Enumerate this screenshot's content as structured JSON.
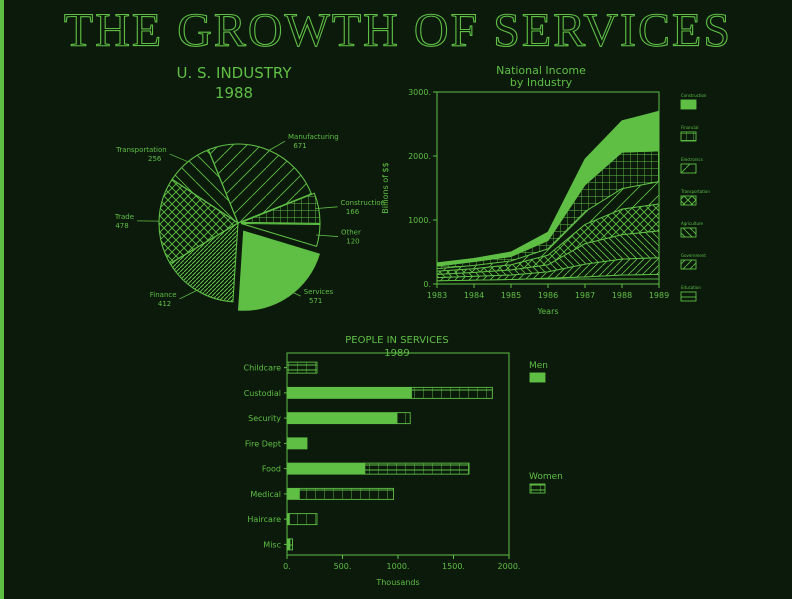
{
  "page": {
    "title": "THE GROWTH OF SERVICES",
    "fg": "#5fbf45",
    "bg": "#0b1a0b"
  },
  "chart_data": [
    {
      "type": "pie",
      "title": "U. S. INDUSTRY",
      "subtitle": "1988",
      "slices": [
        {
          "label": "Manufacturing",
          "value": 671
        },
        {
          "label": "Construction",
          "value": 166
        },
        {
          "label": "Other",
          "value": 120
        },
        {
          "label": "Services",
          "value": 571
        },
        {
          "label": "Finance",
          "value": 412
        },
        {
          "label": "Trade",
          "value": 478
        },
        {
          "label": "Transportation",
          "value": 256
        }
      ]
    },
    {
      "type": "area",
      "stacked": true,
      "title": "National Income",
      "subtitle": "by Industry",
      "xlabel": "Years",
      "ylabel": "Billions of $$",
      "x": [
        1983,
        1984,
        1985,
        1986,
        1987,
        1988,
        1989
      ],
      "xticks": [
        "1983",
        "1984",
        "1985",
        "1986",
        "1987",
        "1988",
        "1989"
      ],
      "yticks": [
        "0.",
        "1000.",
        "2000.",
        "3000."
      ],
      "ylim": [
        0,
        3000
      ],
      "legend_position": "right",
      "series": [
        {
          "name": "Education",
          "values": [
            50,
            60,
            70,
            90,
            110,
            140,
            150
          ]
        },
        {
          "name": "Government",
          "values": [
            50,
            60,
            70,
            100,
            200,
            250,
            260
          ]
        },
        {
          "name": "Agriculture",
          "values": [
            50,
            60,
            80,
            110,
            320,
            380,
            420
          ]
        },
        {
          "name": "Transportation",
          "values": [
            50,
            60,
            80,
            150,
            300,
            400,
            420
          ]
        },
        {
          "name": "Electronics",
          "values": [
            40,
            50,
            60,
            100,
            200,
            320,
            350
          ]
        },
        {
          "name": "Financial",
          "values": [
            40,
            60,
            70,
            130,
            420,
            570,
            480
          ]
        },
        {
          "name": "Construction",
          "values": [
            50,
            50,
            70,
            130,
            400,
            490,
            620
          ]
        }
      ]
    },
    {
      "type": "bar",
      "orientation": "horizontal",
      "stacked": true,
      "title": "PEOPLE IN SERVICES",
      "subtitle": "1989",
      "xlabel": "Thousands",
      "xlim": [
        0,
        2000
      ],
      "xticks": [
        "0.",
        "500.",
        "1000.",
        "1500.",
        "2000."
      ],
      "categories": [
        "Childcare",
        "Custodial",
        "Security",
        "Fire Dept",
        "Food",
        "Medical",
        "Haircare",
        "Misc"
      ],
      "legend_position": "right",
      "series": [
        {
          "name": "Men",
          "values": [
            0,
            1120,
            990,
            180,
            700,
            110,
            20,
            25
          ]
        },
        {
          "name": "Women",
          "values": [
            270,
            730,
            120,
            0,
            940,
            850,
            250,
            25
          ]
        }
      ]
    }
  ]
}
